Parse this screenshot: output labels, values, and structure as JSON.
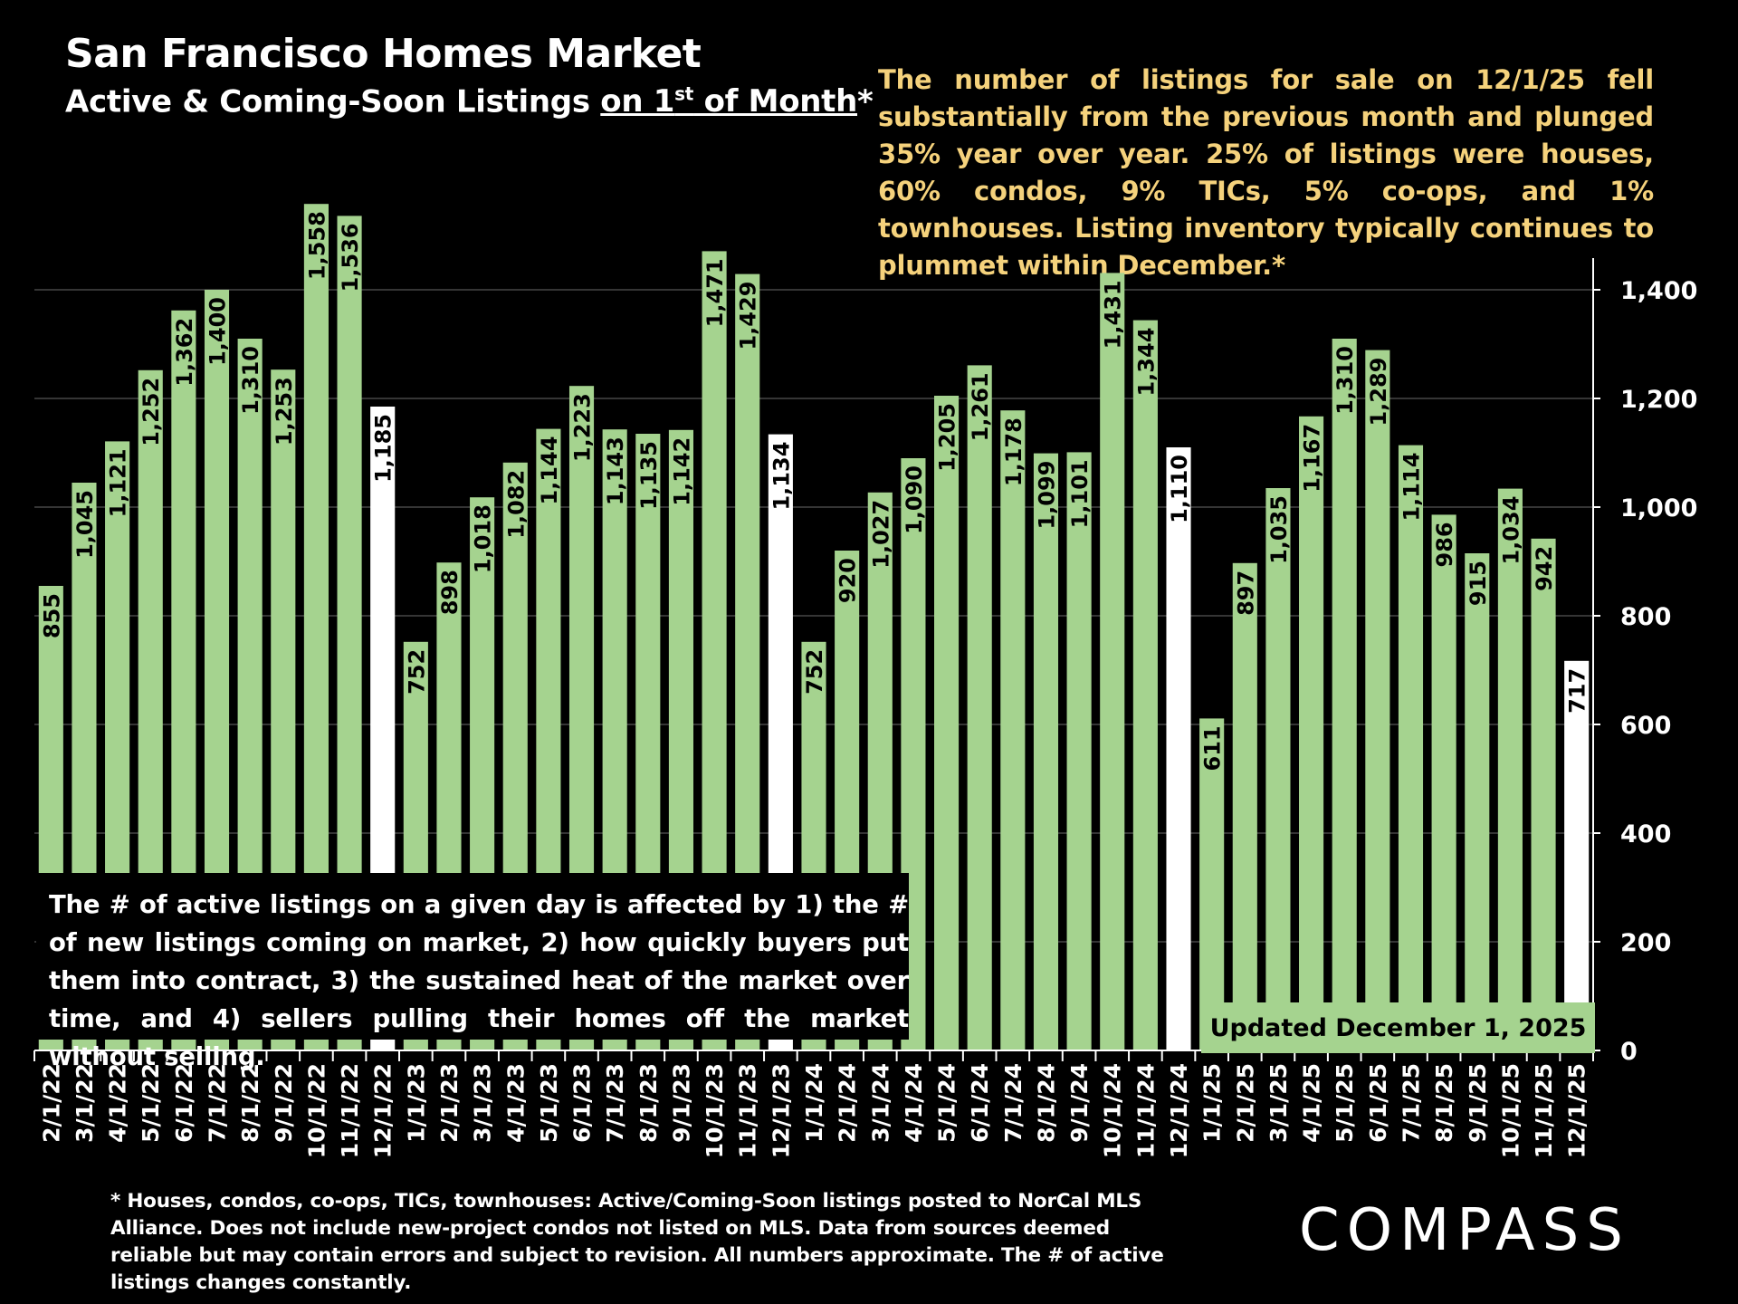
{
  "title": "San Francisco Homes Market",
  "subtitle": {
    "prefix": "Active & Coming-Soon Listings ",
    "underlined_main": "on 1",
    "underlined_sup": "st",
    "underlined_tail": " of Month",
    "suffix": "*"
  },
  "callout": "The number of listings for sale on 12/1/25 fell substantially from the previous month and plunged 35% year over year. 25% of listings were houses, 60% condos, 9% TICs, 5% co-ops, and 1% townhouses. Listing inventory typically continues to plummet within December.*",
  "note_box": "The # of active listings on a given day is affected by 1) the # of new listings coming on market, 2) how quickly buyers put them into contract, 3) the sustained heat of the market over time, and 4) sellers pulling their homes off the market without selling.",
  "updated": "Updated December 1, 2025",
  "footnote": "* Houses, condos, co-ops, TICs, townhouses: Active/Coming-Soon listings posted to NorCal MLS Alliance. Does not include new-project condos not listed on MLS. Data from sources deemed reliable but may contain errors and subject to revision. All numbers approximate. The # of active listings changes constantly.",
  "logo": "COMPASS",
  "colors": {
    "bar": "#a5d38f",
    "highlight": "#ffffff",
    "callout": "#f5d27c",
    "background": "#000000",
    "grid": "#555555"
  },
  "chart_data": {
    "type": "bar",
    "categories": [
      "2/1/22",
      "3/1/22",
      "4/1/22",
      "5/1/22",
      "6/1/22",
      "7/1/22",
      "8/1/22",
      "9/1/22",
      "10/1/22",
      "11/1/22",
      "12/1/22",
      "1/1/23",
      "2/1/23",
      "3/1/23",
      "4/1/23",
      "5/1/23",
      "6/1/23",
      "7/1/23",
      "8/1/23",
      "9/1/23",
      "10/1/23",
      "11/1/23",
      "12/1/23",
      "1/1/24",
      "2/1/24",
      "3/1/24",
      "4/1/24",
      "5/1/24",
      "6/1/24",
      "7/1/24",
      "8/1/24",
      "9/1/24",
      "10/1/24",
      "11/1/24",
      "12/1/24",
      "1/1/25",
      "2/1/25",
      "3/1/25",
      "4/1/25",
      "5/1/25",
      "6/1/25",
      "7/1/25",
      "8/1/25",
      "9/1/25",
      "10/1/25",
      "11/1/25",
      "12/1/25"
    ],
    "values": [
      855,
      1045,
      1121,
      1252,
      1362,
      1400,
      1310,
      1253,
      1558,
      1536,
      1185,
      752,
      898,
      1018,
      1082,
      1144,
      1223,
      1143,
      1135,
      1142,
      1471,
      1429,
      1134,
      752,
      920,
      1027,
      1090,
      1205,
      1261,
      1178,
      1099,
      1101,
      1431,
      1344,
      1110,
      611,
      897,
      1035,
      1167,
      1310,
      1289,
      1114,
      986,
      915,
      1034,
      942,
      717
    ],
    "labels": [
      "855",
      "1,045",
      "1,121",
      "1,252",
      "1,362",
      "1,400",
      "1,310",
      "1,253",
      "1,558",
      "1,536",
      "1,185",
      "752",
      "898",
      "1,018",
      "1,082",
      "1,144",
      "1,223",
      "1,143",
      "1,135",
      "1,142",
      "1,471",
      "1,429",
      "1,134",
      "752",
      "920",
      "1,027",
      "1,090",
      "1,205",
      "1,261",
      "1,178",
      "1,099",
      "1,101",
      "1,431",
      "1,344",
      "1,110",
      "611",
      "897",
      "1,035",
      "1,167",
      "1,310",
      "1,289",
      "1,114",
      "986",
      "915",
      "1,034",
      "942",
      "717"
    ],
    "highlighted_categories": [
      "12/1/22",
      "12/1/23",
      "12/1/24",
      "12/1/25"
    ],
    "ylim": [
      0,
      1450
    ],
    "yticks": [
      0,
      200,
      400,
      600,
      800,
      1000,
      1200,
      1400
    ],
    "ytick_labels": [
      "0",
      "200",
      "400",
      "600",
      "800",
      "1,000",
      "1,200",
      "1,400"
    ],
    "y_axis_side": "right",
    "grid": true,
    "data_labels": "rotated inside bar top"
  }
}
